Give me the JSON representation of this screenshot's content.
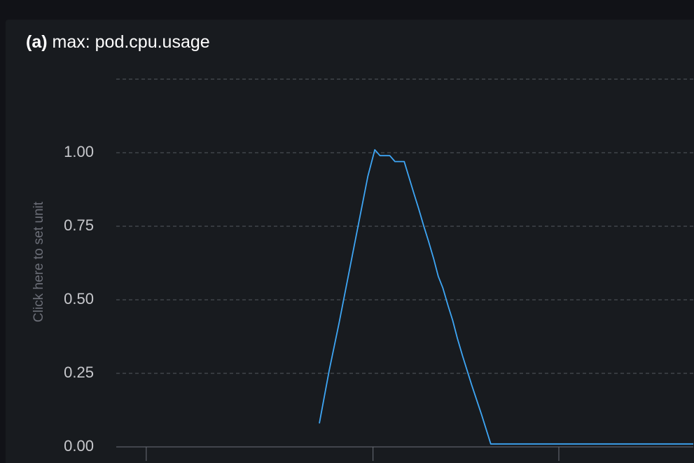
{
  "panel": {
    "title_prefix": "(a)",
    "title": "max: pod.cpu.usage",
    "y_axis_placeholder": "Click here to set unit"
  },
  "colors": {
    "background": "#111217",
    "panel_background": "#181b1f",
    "series_line": "#3ea6f5",
    "grid": "#55585f"
  },
  "chart_data": {
    "type": "line",
    "title": "max: pod.cpu.usage",
    "xlabel": "",
    "ylabel": "",
    "ylim": [
      0,
      1.25
    ],
    "yticks": [
      0,
      0.25,
      0.5,
      0.75,
      1.0,
      1.25
    ],
    "ytick_labels": [
      "0.00",
      "0.25",
      "0.50",
      "0.75",
      "1.00"
    ],
    "xlim": [
      0,
      100
    ],
    "xticks": [
      5.2,
      44.5,
      76.7
    ],
    "grid": true,
    "legend": "none",
    "series": [
      {
        "values": [
          [
            35.2,
            0.08
          ],
          [
            36.9,
            0.26
          ],
          [
            38.6,
            0.42
          ],
          [
            40.3,
            0.59
          ],
          [
            42.0,
            0.76
          ],
          [
            43.6,
            0.92
          ],
          [
            44.8,
            1.01
          ],
          [
            45.7,
            0.99
          ],
          [
            47.4,
            0.99
          ],
          [
            48.3,
            0.97
          ],
          [
            49.9,
            0.97
          ],
          [
            51.6,
            0.86
          ],
          [
            52.4,
            0.81
          ],
          [
            53.3,
            0.75
          ],
          [
            54.1,
            0.7
          ],
          [
            55.0,
            0.64
          ],
          [
            55.8,
            0.58
          ],
          [
            56.6,
            0.54
          ],
          [
            57.5,
            0.48
          ],
          [
            58.3,
            0.43
          ],
          [
            59.1,
            0.37
          ],
          [
            60.0,
            0.31
          ],
          [
            61.6,
            0.21
          ],
          [
            63.3,
            0.11
          ],
          [
            64.9,
            0.01
          ],
          [
            69.1,
            0.01
          ],
          [
            74.1,
            0.01
          ],
          [
            79.2,
            0.01
          ],
          [
            84.2,
            0.01
          ],
          [
            89.2,
            0.01
          ],
          [
            94.2,
            0.01
          ],
          [
            100.0,
            0.01
          ]
        ]
      }
    ]
  }
}
